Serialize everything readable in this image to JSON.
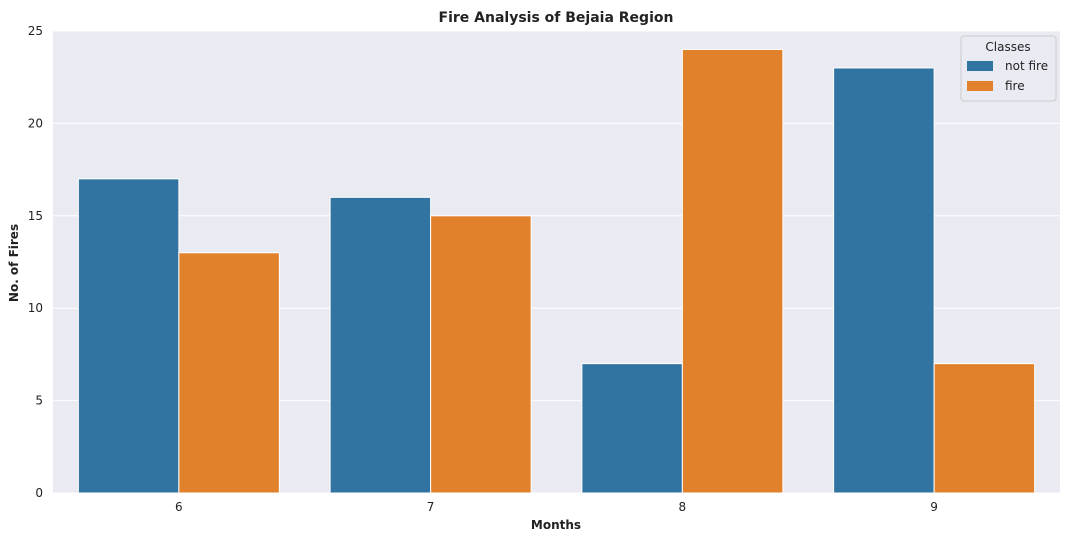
{
  "chart_data": {
    "type": "bar",
    "title": "Fire Analysis of Bejaia Region",
    "xlabel": "Months",
    "ylabel": "No. of Fires",
    "categories": [
      "6",
      "7",
      "8",
      "9"
    ],
    "series": [
      {
        "name": "not fire",
        "color": "#3274a1",
        "values": [
          17,
          16,
          7,
          23
        ]
      },
      {
        "name": "fire",
        "color": "#e1812c",
        "values": [
          13,
          15,
          24,
          7
        ]
      }
    ],
    "ylim": [
      0,
      25
    ],
    "yticks": [
      0,
      5,
      10,
      15,
      20,
      25
    ],
    "grid": true,
    "legend": {
      "title": "Classes",
      "placement": "top-right"
    },
    "plot_background": "#eaeaf2"
  }
}
